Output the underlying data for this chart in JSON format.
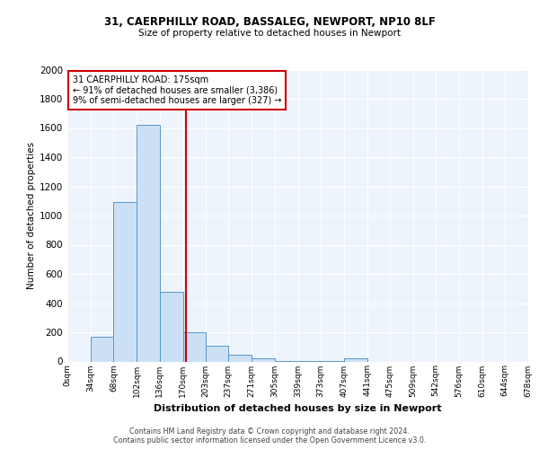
{
  "title1": "31, CAERPHILLY ROAD, BASSALEG, NEWPORT, NP10 8LF",
  "title2": "Size of property relative to detached houses in Newport",
  "xlabel": "Distribution of detached houses by size in Newport",
  "ylabel": "Number of detached properties",
  "footer1": "Contains HM Land Registry data © Crown copyright and database right 2024.",
  "footer2": "Contains public sector information licensed under the Open Government Licence v3.0.",
  "bin_labels": [
    "0sqm",
    "34sqm",
    "68sqm",
    "102sqm",
    "136sqm",
    "170sqm",
    "203sqm",
    "237sqm",
    "271sqm",
    "305sqm",
    "339sqm",
    "373sqm",
    "407sqm",
    "441sqm",
    "475sqm",
    "509sqm",
    "542sqm",
    "576sqm",
    "610sqm",
    "644sqm",
    "678sqm"
  ],
  "bar_values": [
    0,
    170,
    1090,
    1620,
    480,
    200,
    105,
    45,
    20,
    5,
    5,
    5,
    20,
    0,
    0,
    0,
    0,
    0,
    0,
    0
  ],
  "bin_edges": [
    0,
    34,
    68,
    102,
    136,
    170,
    203,
    237,
    271,
    305,
    339,
    373,
    407,
    441,
    475,
    509,
    542,
    576,
    610,
    644,
    678
  ],
  "property_size": 175,
  "annotation_title": "31 CAERPHILLY ROAD: 175sqm",
  "annotation_line1": "← 91% of detached houses are smaller (3,386)",
  "annotation_line2": "9% of semi-detached houses are larger (327) →",
  "bar_fill_color": "#cce0f5",
  "bar_edge_color": "#5599cc",
  "vline_color": "#cc0000",
  "annotation_box_edge": "#cc0000",
  "background_color": "#eef4fb",
  "ylim": [
    0,
    2000
  ],
  "yticks": [
    0,
    200,
    400,
    600,
    800,
    1000,
    1200,
    1400,
    1600,
    1800,
    2000
  ],
  "xlim_max": 678
}
